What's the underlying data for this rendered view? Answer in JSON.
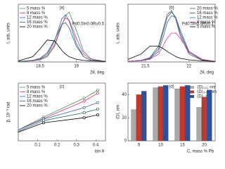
{
  "chart_data": [
    {
      "type": "line",
      "label": "(a)",
      "annotation": "Pd0.5In0.0Ru0.5",
      "xlabel": "2θ, deg",
      "ylabel": "I, arb. units",
      "xlim": [
        18.2,
        19.4
      ],
      "xticks": [
        18.5,
        19.0
      ],
      "ylim": [
        0,
        1.1
      ],
      "legend": "upper left",
      "x": [
        18.2,
        18.4,
        18.5,
        18.6,
        18.7,
        18.8,
        18.85,
        18.9,
        19.0,
        19.1,
        19.2,
        19.4
      ],
      "series": [
        {
          "name": "5 mass %",
          "color": "#3a9a3a",
          "values": [
            0.01,
            0.02,
            0.04,
            0.1,
            0.3,
            0.7,
            0.88,
            0.95,
            0.6,
            0.2,
            0.06,
            0.01
          ]
        },
        {
          "name": "8 mass %",
          "color": "#e0309a",
          "values": [
            0.01,
            0.02,
            0.05,
            0.12,
            0.33,
            0.72,
            0.84,
            0.8,
            0.45,
            0.15,
            0.05,
            0.01
          ]
        },
        {
          "name": "12 mass %",
          "color": "#3a5fb0",
          "values": [
            0.01,
            0.03,
            0.06,
            0.15,
            0.4,
            0.82,
            0.9,
            0.78,
            0.35,
            0.1,
            0.03,
            0.01
          ]
        },
        {
          "name": "16 mass %",
          "color": "#2a6a6a",
          "values": [
            0.01,
            0.03,
            0.07,
            0.18,
            0.42,
            0.72,
            0.75,
            0.65,
            0.3,
            0.1,
            0.03,
            0.01
          ]
        },
        {
          "name": "20 mass %",
          "color": "#000000",
          "values": [
            0.02,
            0.1,
            0.25,
            0.42,
            0.4,
            0.22,
            0.15,
            0.1,
            0.05,
            0.03,
            0.02,
            0.01
          ]
        }
      ]
    },
    {
      "type": "line",
      "label": "(b)",
      "annotation": "Pd0.5In0.4Ru0.1",
      "xlabel": "2θ, deg",
      "ylabel": "I, arb. units",
      "xlim": [
        21.3,
        22.3
      ],
      "xticks": [
        21.5,
        22.0
      ],
      "ylim": [
        0,
        1.1
      ],
      "legend": "upper right",
      "x": [
        21.3,
        21.45,
        21.55,
        21.65,
        21.7,
        21.75,
        21.8,
        21.85,
        21.9,
        22.0,
        22.15,
        22.3
      ],
      "series": [
        {
          "name": "20 mass %",
          "color": "#555555",
          "values": [
            0.01,
            0.03,
            0.08,
            0.3,
            0.6,
            0.9,
            0.98,
            0.8,
            0.5,
            0.15,
            0.03,
            0.01
          ]
        },
        {
          "name": "16 mass %",
          "color": "#2a6a6a",
          "values": [
            0.01,
            0.03,
            0.07,
            0.25,
            0.55,
            0.85,
            0.95,
            0.85,
            0.55,
            0.18,
            0.04,
            0.01
          ]
        },
        {
          "name": "12 mass %",
          "color": "#3a5fb0",
          "values": [
            0.01,
            0.03,
            0.06,
            0.2,
            0.45,
            0.75,
            0.88,
            0.85,
            0.6,
            0.2,
            0.05,
            0.01
          ]
        },
        {
          "name": "8 mass %",
          "color": "#e0309a",
          "values": [
            0.01,
            0.02,
            0.05,
            0.15,
            0.3,
            0.45,
            0.55,
            0.55,
            0.45,
            0.2,
            0.05,
            0.01
          ]
        },
        {
          "name": "5 mass %",
          "color": "#000000",
          "values": [
            0.05,
            0.15,
            0.3,
            0.3,
            0.26,
            0.2,
            0.15,
            0.1,
            0.07,
            0.04,
            0.02,
            0.01
          ]
        }
      ]
    },
    {
      "type": "line",
      "label": "(c)",
      "xlabel": "tan θ",
      "ylabel": "β, 10⁻³ rad",
      "markers": true,
      "xlim": [
        0,
        0.45
      ],
      "xticks": [
        0.1,
        0.2,
        0.3,
        0.4
      ],
      "ylim": [
        0,
        8
      ],
      "legend": "upper left",
      "x": [
        0,
        0.13,
        0.34,
        0.41
      ],
      "series": [
        {
          "name": "5 mass %",
          "color": "#3a9a3a",
          "values": [
            1.5,
            3.3,
            5.9,
            7.0
          ]
        },
        {
          "name": "8 mass %",
          "color": "#e0309a",
          "values": [
            1.5,
            3.1,
            5.5,
            6.6
          ]
        },
        {
          "name": "12 mass %",
          "color": "#3a5fb0",
          "values": [
            1.5,
            3.0,
            4.6,
            5.3
          ]
        },
        {
          "name": "16 mass %",
          "color": "#2a6a6a",
          "values": [
            1.3,
            2.8,
            3.9,
            4.4
          ]
        },
        {
          "name": "20 mass %",
          "color": "#000000",
          "values": [
            1.2,
            2.5,
            3.2,
            3.6
          ]
        }
      ]
    },
    {
      "type": "bar",
      "label": "(d)",
      "xlabel": "C, mass % Pb",
      "ylabel": "⟨D⟩, nm",
      "categories": [
        "5",
        "10",
        "15",
        "20"
      ],
      "ylim": [
        0,
        50
      ],
      "yticks": [
        0,
        20,
        40
      ],
      "legend": "upper right",
      "series": [
        {
          "name": "⟨D⟩₁₁₁, nm",
          "color": "#aaaaaa",
          "values": [
            27,
            46,
            45,
            29
          ]
        },
        {
          "name": "⟨D⟩₂₀₀, nm",
          "color": "#c0392b",
          "values": [
            40,
            47,
            47,
            38
          ]
        },
        {
          "name": "⟨D⟩, nm",
          "color": "#2c4fa0",
          "values": [
            43,
            48,
            48,
            44
          ]
        }
      ]
    }
  ]
}
